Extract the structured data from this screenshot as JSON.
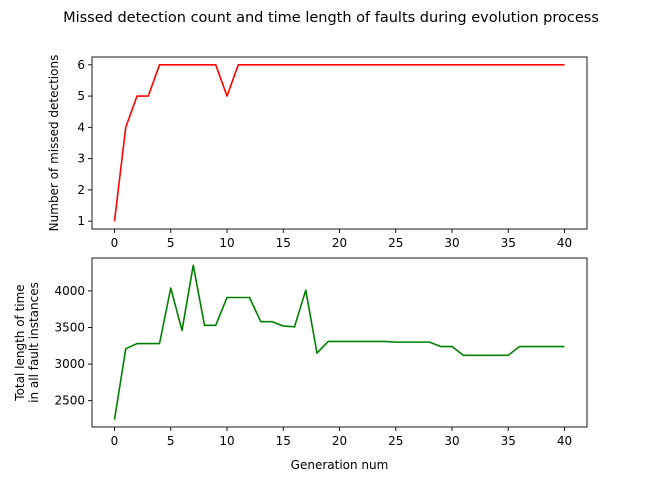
{
  "title": "Missed detection count and time length of faults during evolution process",
  "chart_data": [
    {
      "type": "line",
      "ylabel": "Number of missed detections",
      "xlabel": "",
      "xlim": [
        -2,
        42
      ],
      "ylim": [
        0.75,
        6.25
      ],
      "xticks": [
        0,
        5,
        10,
        15,
        20,
        25,
        30,
        35,
        40
      ],
      "yticks": [
        1,
        2,
        3,
        4,
        5,
        6
      ],
      "grid": false,
      "series": [
        {
          "color": "#ff0000",
          "x": [
            0,
            1,
            2,
            3,
            4,
            5,
            6,
            7,
            8,
            9,
            10,
            11,
            12,
            13,
            14,
            15,
            16,
            17,
            18,
            19,
            20,
            21,
            22,
            23,
            24,
            25,
            26,
            27,
            28,
            29,
            30,
            31,
            32,
            33,
            34,
            35,
            36,
            37,
            38,
            39,
            40
          ],
          "values": [
            1,
            4,
            5,
            5,
            6,
            6,
            6,
            6,
            6,
            6,
            5,
            6,
            6,
            6,
            6,
            6,
            6,
            6,
            6,
            6,
            6,
            6,
            6,
            6,
            6,
            6,
            6,
            6,
            6,
            6,
            6,
            6,
            6,
            6,
            6,
            6,
            6,
            6,
            6,
            6,
            6
          ]
        }
      ]
    },
    {
      "type": "line",
      "ylabel": "Total length of time\nin all fault instances",
      "xlabel": "Generation num",
      "xlim": [
        -2,
        42
      ],
      "ylim": [
        2140,
        4450
      ],
      "xticks": [
        0,
        5,
        10,
        15,
        20,
        25,
        30,
        35,
        40
      ],
      "yticks": [
        2500,
        3000,
        3500,
        4000
      ],
      "grid": false,
      "series": [
        {
          "color": "#008000",
          "x": [
            0,
            1,
            2,
            3,
            4,
            5,
            6,
            7,
            8,
            9,
            10,
            11,
            12,
            13,
            14,
            15,
            16,
            17,
            18,
            19,
            20,
            21,
            22,
            23,
            24,
            25,
            26,
            27,
            28,
            29,
            30,
            31,
            32,
            33,
            34,
            35,
            36,
            37,
            38,
            39,
            40
          ],
          "values": [
            2240,
            3210,
            3280,
            3280,
            3280,
            4040,
            3460,
            4350,
            3530,
            3530,
            3910,
            3910,
            3910,
            3580,
            3580,
            3520,
            3510,
            4010,
            3150,
            3310,
            3310,
            3310,
            3310,
            3310,
            3310,
            3300,
            3300,
            3300,
            3300,
            3240,
            3240,
            3120,
            3120,
            3120,
            3120,
            3120,
            3240,
            3240,
            3240,
            3240,
            3240
          ]
        }
      ]
    }
  ]
}
